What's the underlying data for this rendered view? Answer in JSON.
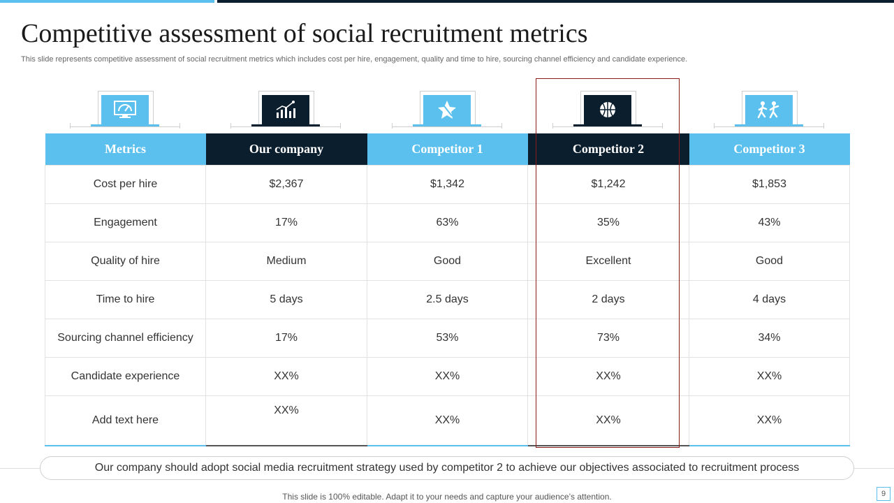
{
  "header": {
    "title": "Competitive assessment of social recruitment metrics",
    "subtitle": "This slide represents competitive assessment of social recruitment metrics which includes cost per hire, engagement, quality and time to hire, sourcing channel efficiency and candidate experience."
  },
  "colors": {
    "accent_light": "#5bc0ee",
    "accent_dark": "#0b1e2d",
    "highlight_border": "#8b1a1a"
  },
  "icons": [
    "monitor-dashboard-icon",
    "growth-chart-people-icon",
    "puzzle-star-icon",
    "basketball-icon",
    "running-people-icon"
  ],
  "table": {
    "headers": [
      "Metrics",
      "Our company",
      "Competitor 1",
      "Competitor 2",
      "Competitor 3"
    ],
    "rows": [
      [
        "Cost per hire",
        "$2,367",
        "$1,342",
        "$1,242",
        "$1,853"
      ],
      [
        "Engagement",
        "17%",
        "63%",
        "35%",
        "43%"
      ],
      [
        "Quality  of hire",
        "Medium",
        "Good",
        "Excellent",
        "Good"
      ],
      [
        "Time to hire",
        "5 days",
        "2.5 days",
        "2 days",
        "4 days"
      ],
      [
        "Sourcing channel efficiency",
        "17%",
        "53%",
        "73%",
        "34%"
      ],
      [
        "Candidate experience",
        "XX%",
        "XX%",
        "XX%",
        "XX%"
      ],
      [
        "Add text here",
        "XX%",
        "XX%",
        "XX%",
        "XX%"
      ]
    ]
  },
  "conclusion": "Our company should adopt social media recruitment strategy used by competitor 2 to achieve our objectives associated to recruitment process",
  "footer": "This slide is 100% editable. Adapt it to your needs and capture your audience’s attention.",
  "page_number": "9"
}
